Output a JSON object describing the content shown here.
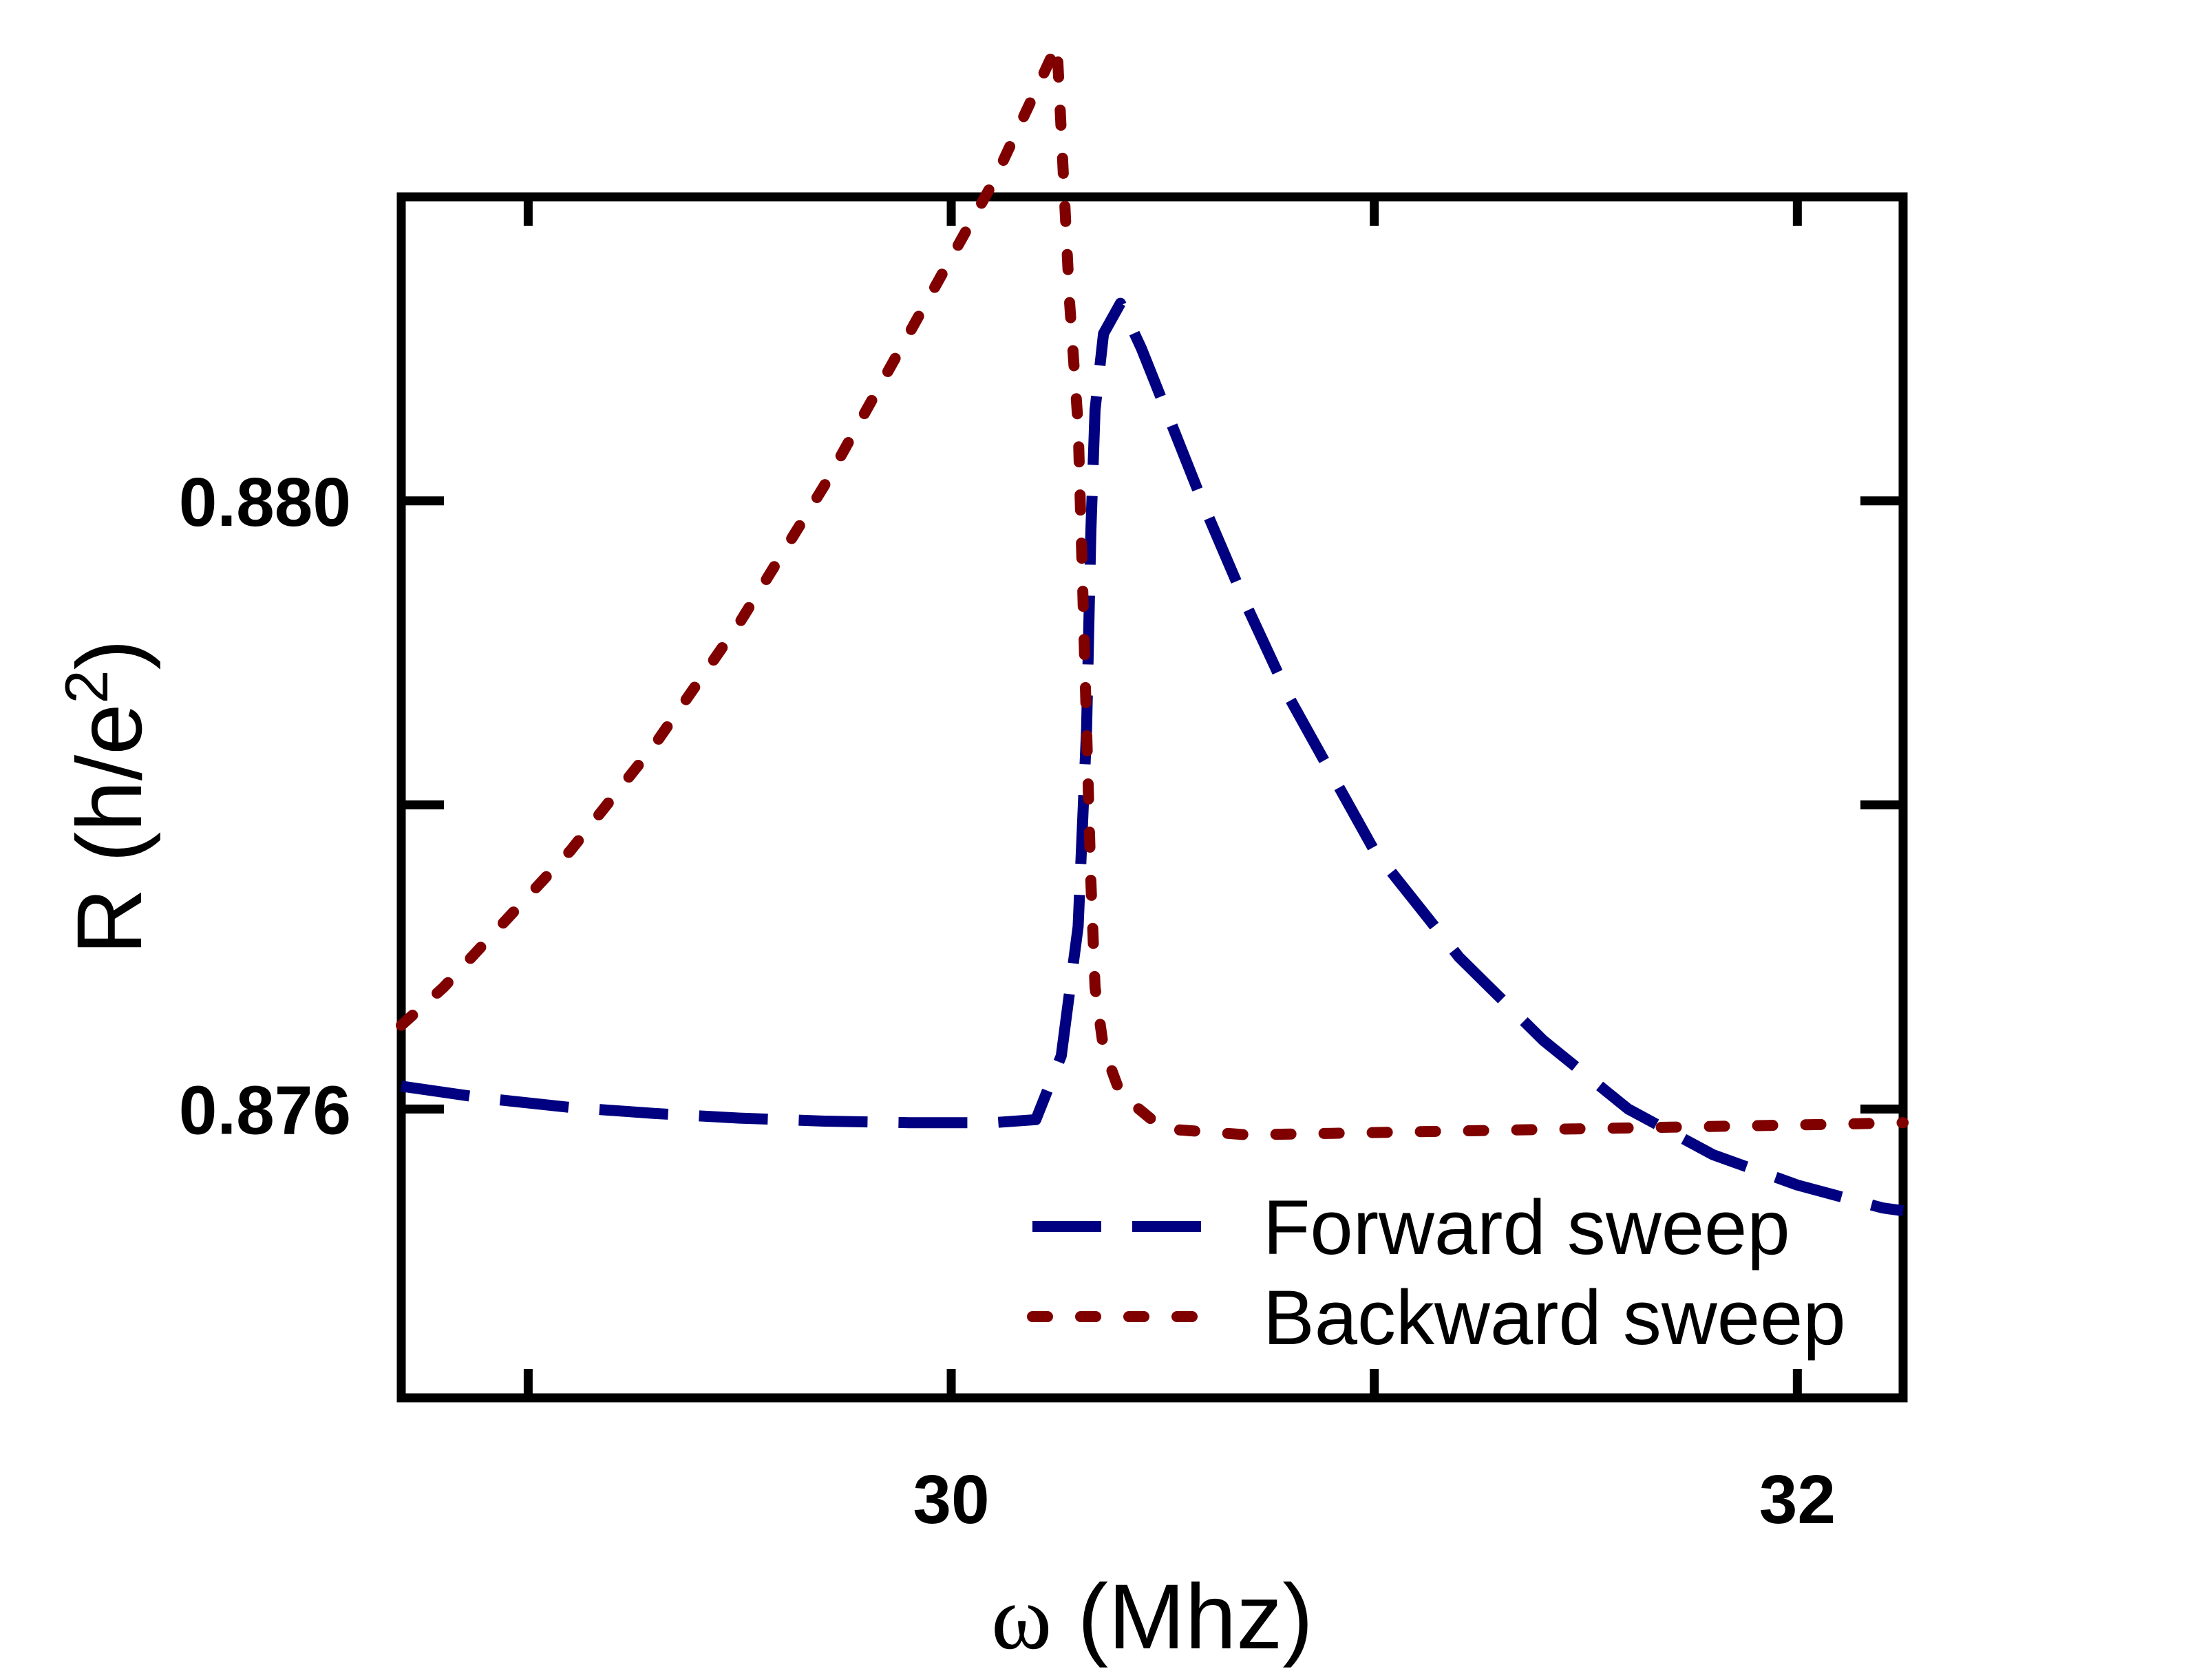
{
  "chart_data": {
    "type": "line",
    "xlabel_symbol": "ω",
    "xlabel_rest": " (Mhz)",
    "ylabel_main": "R (h/e",
    "ylabel_sup": "2",
    "ylabel_close": ")",
    "xlim": [
      28.7,
      32.25
    ],
    "ylim": [
      0.8741,
      0.882
    ],
    "x_ticks": [
      29,
      30,
      31,
      32
    ],
    "x_tick_labels": [
      "",
      "30",
      "",
      "32"
    ],
    "y_ticks": [
      0.876,
      0.878,
      0.88
    ],
    "y_tick_labels": [
      "0.876",
      "",
      "0.880"
    ],
    "legend_position": "bottom-right",
    "series": [
      {
        "name": "Forward sweep",
        "color": "#000080",
        "dash": "long-dash",
        "x": [
          28.7,
          28.9,
          29.1,
          29.3,
          29.5,
          29.7,
          29.9,
          30.1,
          30.2,
          30.26,
          30.3,
          30.32,
          30.33,
          30.34,
          30.36,
          30.4,
          30.45,
          30.5,
          30.6,
          30.7,
          30.8,
          30.9,
          31.0,
          31.2,
          31.4,
          31.6,
          31.8,
          32.0,
          32.2,
          32.25
        ],
        "y": [
          0.87615,
          0.87607,
          0.87601,
          0.87597,
          0.87594,
          0.87592,
          0.87591,
          0.87591,
          0.87593,
          0.87635,
          0.8772,
          0.8785,
          0.8798,
          0.8806,
          0.8811,
          0.8813,
          0.881,
          0.88065,
          0.87995,
          0.8793,
          0.8787,
          0.8782,
          0.8777,
          0.877,
          0.87645,
          0.876,
          0.8757,
          0.8755,
          0.87535,
          0.87533
        ]
      },
      {
        "name": "Backward sweep",
        "color": "#800000",
        "dash": "dotted",
        "x": [
          28.7,
          28.8,
          28.9,
          29.0,
          29.1,
          29.2,
          29.3,
          29.4,
          29.5,
          29.6,
          29.7,
          29.8,
          29.9,
          30.0,
          30.1,
          30.15,
          30.2,
          30.25,
          30.28,
          30.3,
          30.31,
          30.32,
          30.33,
          30.34,
          30.36,
          30.4,
          30.5,
          30.7,
          30.9,
          31.1,
          31.3,
          31.5,
          31.7,
          31.9,
          32.1,
          32.25
        ],
        "y": [
          0.87655,
          0.8768,
          0.8771,
          0.8774,
          0.8777,
          0.87805,
          0.8784,
          0.8788,
          0.8792,
          0.87965,
          0.8801,
          0.8806,
          0.8811,
          0.8816,
          0.8821,
          0.8824,
          0.8827,
          0.883,
          0.8813,
          0.8805,
          0.8795,
          0.8785,
          0.8775,
          0.8768,
          0.8764,
          0.8761,
          0.87587,
          0.87583,
          0.87584,
          0.87585,
          0.87586,
          0.87587,
          0.87588,
          0.87589,
          0.8759,
          0.87591
        ]
      }
    ]
  }
}
